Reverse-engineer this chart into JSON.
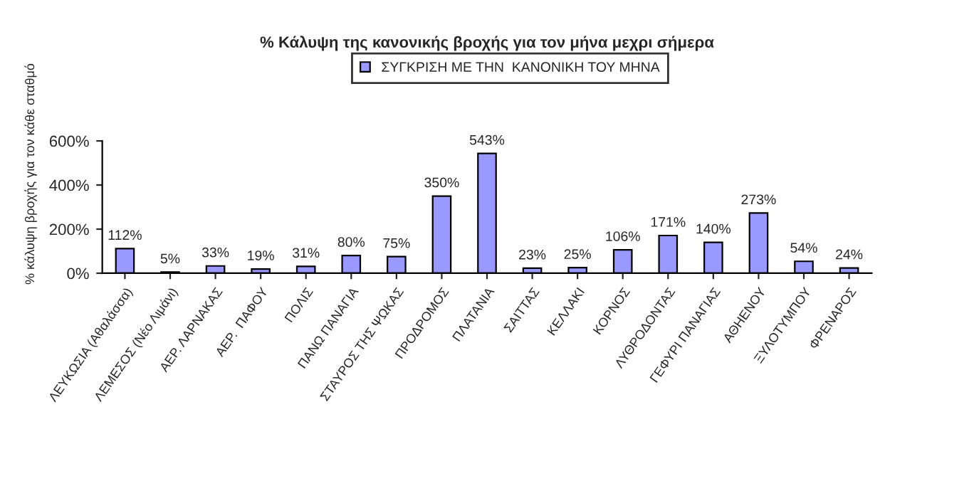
{
  "chart_data": {
    "type": "bar",
    "title": "% Κάλυψη της κανονικής βροχής για τον μήνα μεχρι σήμερα",
    "ylabel": "% κάλυψη βροχής για τον κάθε σταθμό",
    "categories": [
      "ΛΕΥΚΩΣΙΑ (Αθαλάσσα)",
      "ΛΕΜΕΣΟΣ (Νέο Λιμάνι)",
      "ΑΕΡ. ΛΑΡΝΑΚΑΣ",
      "ΑΕΡ.  ΠΑΦΟΥ",
      "ΠΟΛΙΣ",
      "ΠΑΝΩ ΠΑΝΑΓΙΑ",
      "ΣΤΑΥΡΟΣ ΤΗΣ ΨΩΚΑΣ",
      "ΠΡΟΔΡΟΜΟΣ",
      "ΠΛΑΤΑΝΙΑ",
      "ΣΑΙΤΤΑΣ",
      "ΚΕΛΛΑΚΙ",
      "ΚΟΡΝΟΣ",
      "ΛΥΘΡΟΔΟΝΤΑΣ",
      "ΓΕΦΥΡΙ ΠΑΝΑΓΙΑΣ",
      "ΑΘΗΕΝΟΥ",
      "ΞΥΛΟΤΥΜΠΟΥ",
      "ΦΡΕΝΑΡΟΣ"
    ],
    "series": [
      {
        "name": "ΣΥΓΚΡΙΣΗ ΜΕ ΤΗΝ  ΚΑΝΟΝΙΚΗ ΤΟΥ ΜΗΝΑ",
        "color": "#9999ff",
        "values": [
          112,
          5,
          33,
          19,
          31,
          80,
          75,
          350,
          543,
          23,
          25,
          106,
          171,
          140,
          273,
          54,
          24
        ],
        "value_labels": [
          "112%",
          "5%",
          "33%",
          "19%",
          "31%",
          "80%",
          "75%",
          "350%",
          "543%",
          "23%",
          "25%",
          "106%",
          "171%",
          "140%",
          "273%",
          "54%",
          "24%"
        ]
      }
    ],
    "ylim": [
      0,
      600
    ],
    "yticks": [
      {
        "value": 0,
        "label": "0%"
      },
      {
        "value": 200,
        "label": "200%"
      },
      {
        "value": 400,
        "label": "400%"
      },
      {
        "value": 600,
        "label": "600%"
      }
    ],
    "legend": "top",
    "grid": false
  }
}
